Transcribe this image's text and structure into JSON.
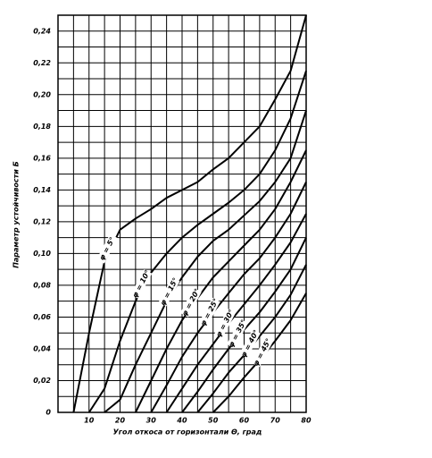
{
  "chart_data": {
    "type": "line",
    "x_label": "Угол откоса от горизонтали Θ, град",
    "y_label": "Параметр устойчивости Б",
    "x": [
      5,
      10,
      15,
      20,
      25,
      30,
      35,
      40,
      45,
      50,
      55,
      60,
      65,
      70,
      75,
      80
    ],
    "series": [
      {
        "name": "φ = 5°",
        "color": "#000000",
        "values": [
          0,
          0.05,
          0.095,
          0.115,
          0.122,
          0.128,
          0.135,
          0.14,
          0.145,
          0.153,
          0.16,
          0.17,
          0.18,
          0.197,
          0.215,
          0.25
        ]
      },
      {
        "name": "φ = 10°",
        "color": "#000000",
        "values": [
          null,
          0,
          0.015,
          0.045,
          0.07,
          0.088,
          0.1,
          0.11,
          0.118,
          0.125,
          0.132,
          0.14,
          0.15,
          0.165,
          0.185,
          0.215
        ]
      },
      {
        "name": "φ = 15°",
        "color": "#000000",
        "values": [
          null,
          null,
          0,
          0.008,
          0.03,
          0.05,
          0.07,
          0.085,
          0.098,
          0.108,
          0.115,
          0.124,
          0.133,
          0.145,
          0.16,
          0.19
        ]
      },
      {
        "name": "φ = 20°",
        "color": "#000000",
        "values": [
          null,
          null,
          null,
          null,
          0,
          0.02,
          0.04,
          0.058,
          0.072,
          0.085,
          0.095,
          0.105,
          0.115,
          0.128,
          0.145,
          0.165
        ]
      },
      {
        "name": "φ = 25°",
        "color": "#000000",
        "values": [
          null,
          null,
          null,
          null,
          null,
          0,
          0.017,
          0.035,
          0.05,
          0.063,
          0.075,
          0.087,
          0.097,
          0.11,
          0.125,
          0.145
        ]
      },
      {
        "name": "φ = 30°",
        "color": "#000000",
        "values": [
          null,
          null,
          null,
          null,
          null,
          null,
          0,
          0.015,
          0.03,
          0.043,
          0.056,
          0.068,
          0.08,
          0.093,
          0.107,
          0.125
        ]
      },
      {
        "name": "φ = 35°",
        "color": "#000000",
        "values": [
          null,
          null,
          null,
          null,
          null,
          null,
          null,
          0,
          0.013,
          0.027,
          0.04,
          0.052,
          0.063,
          0.076,
          0.09,
          0.11
        ]
      },
      {
        "name": "φ = 40°",
        "color": "#000000",
        "values": [
          null,
          null,
          null,
          null,
          null,
          null,
          null,
          null,
          0,
          0.012,
          0.025,
          0.036,
          0.048,
          0.06,
          0.074,
          0.093
        ]
      },
      {
        "name": "φ = 45°",
        "color": "#000000",
        "values": [
          null,
          null,
          null,
          null,
          null,
          null,
          null,
          null,
          null,
          0,
          0.01,
          0.022,
          0.033,
          0.045,
          0.058,
          0.075
        ]
      }
    ],
    "xlim": [
      0,
      80
    ],
    "xticks": [
      10,
      20,
      30,
      40,
      50,
      60,
      70,
      80
    ],
    "ylim": [
      0,
      0.25
    ],
    "yticks": [
      0,
      {
        "value": 0.02,
        "label": "0,02"
      },
      {
        "value": 0.04,
        "label": "0,04"
      },
      {
        "value": 0.06,
        "label": "0,06"
      },
      {
        "value": 0.08,
        "label": "0,08"
      },
      {
        "value": 0.1,
        "label": "0,10"
      },
      {
        "value": 0.12,
        "label": "0,12"
      },
      {
        "value": 0.14,
        "label": "0,14"
      },
      {
        "value": 0.16,
        "label": "0,16"
      },
      {
        "value": 0.18,
        "label": "0,18"
      },
      {
        "value": 0.2,
        "label": "0,20"
      },
      {
        "value": 0.22,
        "label": "0,22"
      },
      {
        "value": 0.24,
        "label": "0,24"
      }
    ],
    "grid": true
  }
}
